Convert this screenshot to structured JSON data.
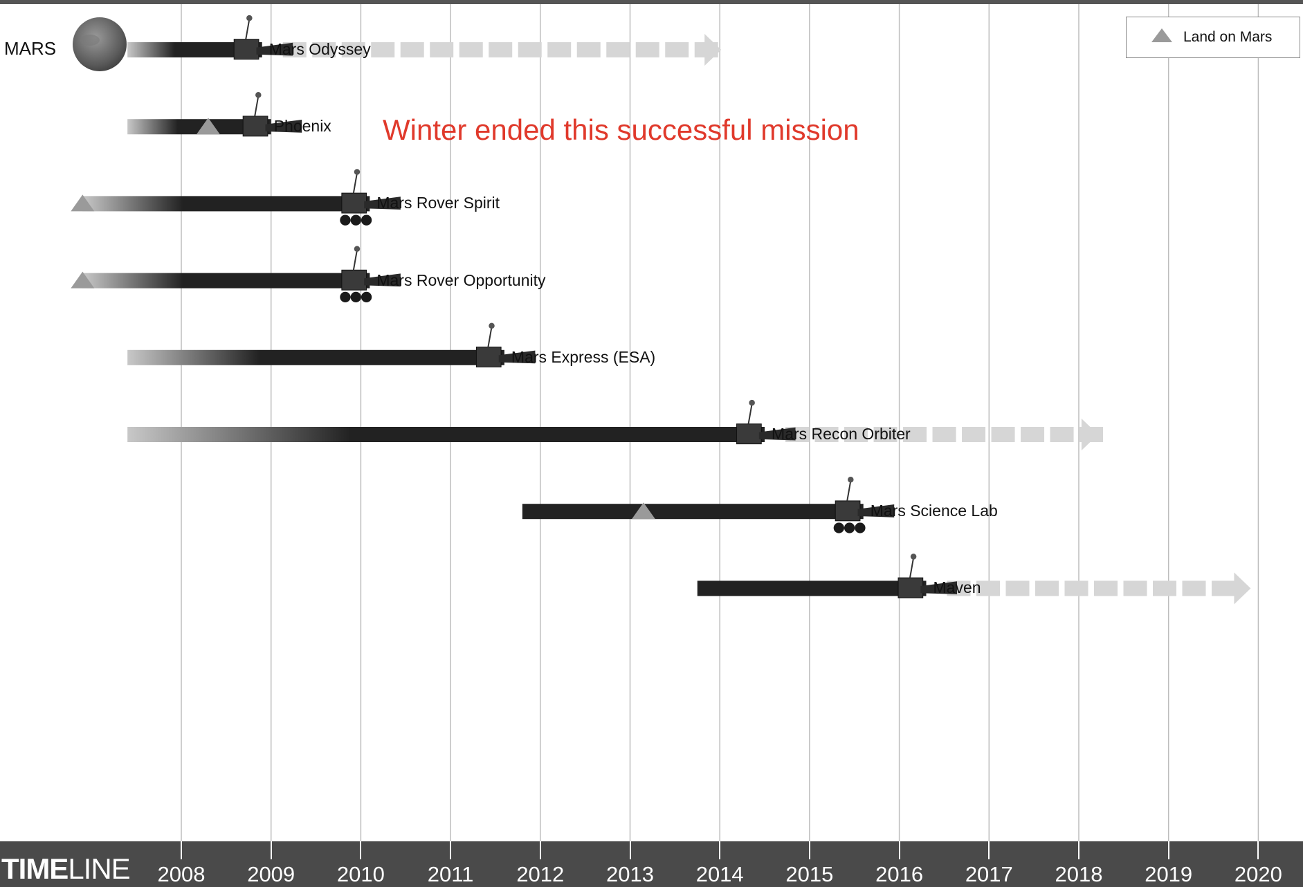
{
  "planet_label": "MARS",
  "annotation": "Winter ended this successful mission",
  "legend": {
    "icon": "triangle-icon",
    "label": "Land on Mars"
  },
  "footer": {
    "title_bold": "TIME",
    "title_light": "LINE"
  },
  "colors": {
    "bar": "#222222",
    "future": "#d6d6d6",
    "marker": "#9a9a9a",
    "annotation": "#e0392b",
    "footer": "#4a4a4a",
    "gridline": "#bdbdbd"
  },
  "timeline": {
    "years": [
      "2008",
      "2009",
      "2010",
      "2011",
      "2012",
      "2013",
      "2014",
      "2015",
      "2016",
      "2017",
      "2018",
      "2019",
      "2020"
    ],
    "missions": [
      {
        "name": "Mars Odyssey",
        "start": 2007.4,
        "end": 2008.9,
        "continues_until": 2014.0,
        "landing": null
      },
      {
        "name": "Phoenix",
        "start": 2007.4,
        "end": 2009.0,
        "continues_until": null,
        "landing": 2008.3
      },
      {
        "name": "Mars Rover Spirit",
        "start": 2006.9,
        "end": 2010.1,
        "continues_until": null,
        "landing": 2006.9
      },
      {
        "name": "Mars Rover Opportunity",
        "start": 2006.9,
        "end": 2010.1,
        "continues_until": null,
        "landing": 2006.9
      },
      {
        "name": "Mars Express (ESA)",
        "start": 2007.4,
        "end": 2011.6,
        "continues_until": null,
        "landing": null
      },
      {
        "name": "Mars Recon Orbiter",
        "start": 2007.4,
        "end": 2014.5,
        "continues_until": 2018.2,
        "landing": null
      },
      {
        "name": "Mars Science Lab",
        "start": 2011.8,
        "end": 2015.6,
        "continues_until": null,
        "landing": 2013.15
      },
      {
        "name": "Maven",
        "start": 2013.75,
        "end": 2016.3,
        "continues_until": 2019.9,
        "landing": null
      }
    ]
  }
}
